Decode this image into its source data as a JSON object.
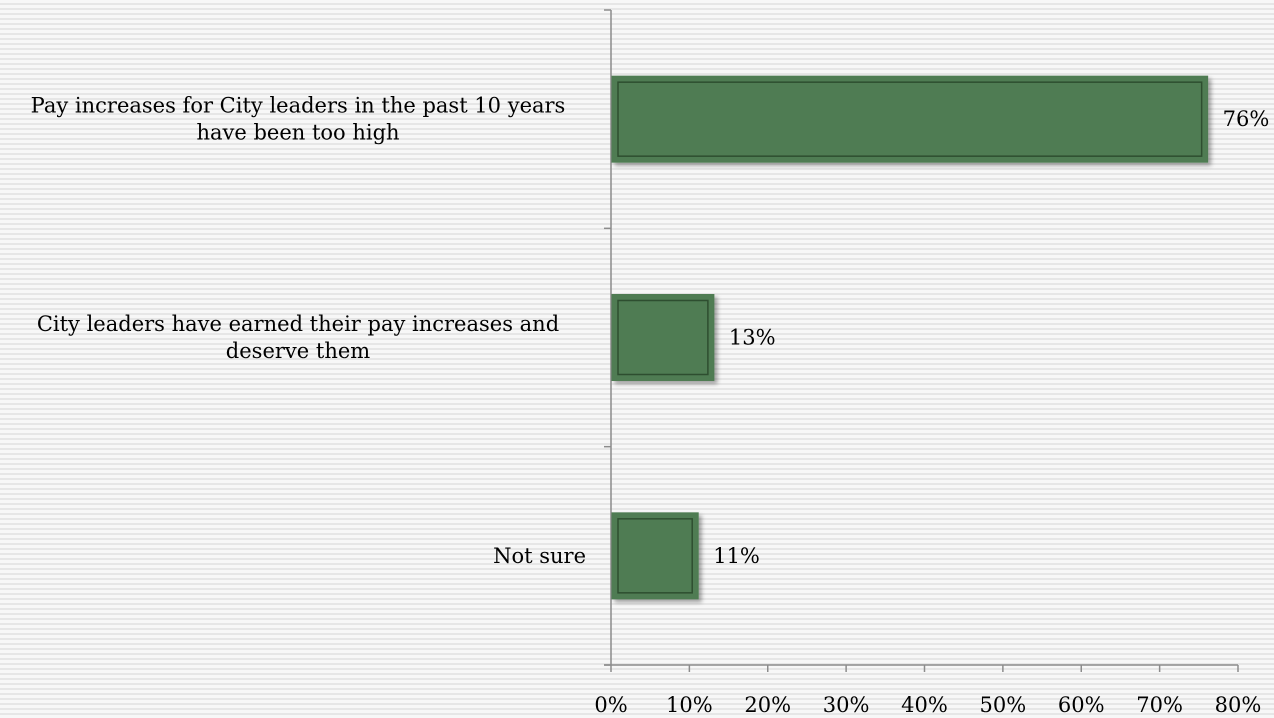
{
  "chart_data": {
    "type": "bar",
    "orientation": "horizontal",
    "categories": [
      [
        "Pay increases for City leaders in the past 10 years",
        "have been too high"
      ],
      [
        "City leaders have earned their pay increases and",
        "deserve them"
      ],
      [
        "Not sure"
      ]
    ],
    "values": [
      76,
      13,
      11
    ],
    "value_labels": [
      "76%",
      "13%",
      "11%"
    ],
    "xlim": [
      0,
      80
    ],
    "xticks": [
      0,
      10,
      20,
      30,
      40,
      50,
      60,
      70,
      80
    ],
    "xtick_labels": [
      "0%",
      "10%",
      "20%",
      "30%",
      "40%",
      "50%",
      "60%",
      "70%",
      "80%"
    ],
    "bar_color": "#4f7b52",
    "bar_border_color": "#2e4e30",
    "grid": false,
    "legend": "none"
  }
}
